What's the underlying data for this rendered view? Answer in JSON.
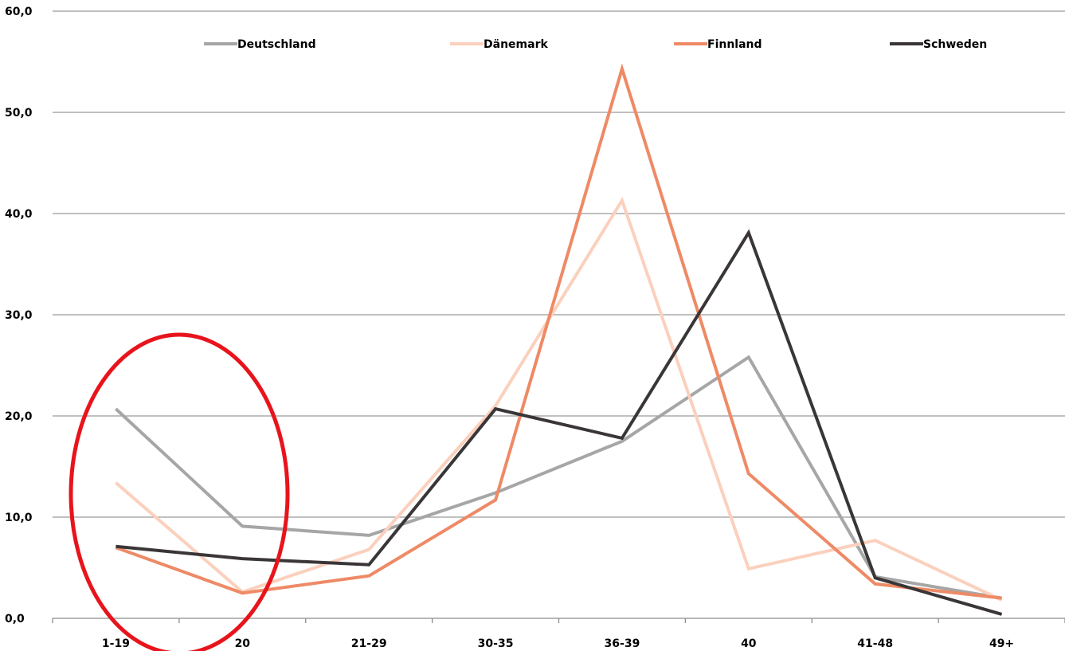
{
  "chart_data": {
    "type": "line",
    "categories": [
      "1-19",
      "20",
      "21-29",
      "30-35",
      "36-39",
      "40",
      "41-48",
      "49+"
    ],
    "ylim": [
      0,
      60
    ],
    "yticks": [
      "0,0",
      "10,0",
      "20,0",
      "30,0",
      "40,0",
      "50,0",
      "60,0"
    ],
    "ytick_values": [
      0,
      10,
      20,
      30,
      40,
      50,
      60
    ],
    "grid": true,
    "legend_position": "top",
    "series": [
      {
        "name": "Deutschland",
        "color": "#a6a6a6",
        "values": [
          20.7,
          9.1,
          8.2,
          12.4,
          17.5,
          25.8,
          4.1,
          2.0
        ]
      },
      {
        "name": "Dänemark",
        "color": "#fbd0bd",
        "values": [
          13.4,
          2.6,
          6.8,
          21.0,
          41.3,
          4.9,
          7.7,
          1.8
        ]
      },
      {
        "name": "Finnland",
        "color": "#ee8a66",
        "values": [
          7.0,
          2.5,
          4.2,
          11.7,
          54.3,
          14.3,
          3.4,
          2.0
        ]
      },
      {
        "name": "Schweden",
        "color": "#3a3637",
        "values": [
          7.1,
          5.9,
          5.3,
          20.7,
          17.8,
          38.1,
          4.0,
          0.4
        ]
      }
    ],
    "annotation": {
      "shape": "ellipse",
      "color": "#e8141c",
      "around_categories": [
        "1-19",
        "20"
      ]
    }
  }
}
